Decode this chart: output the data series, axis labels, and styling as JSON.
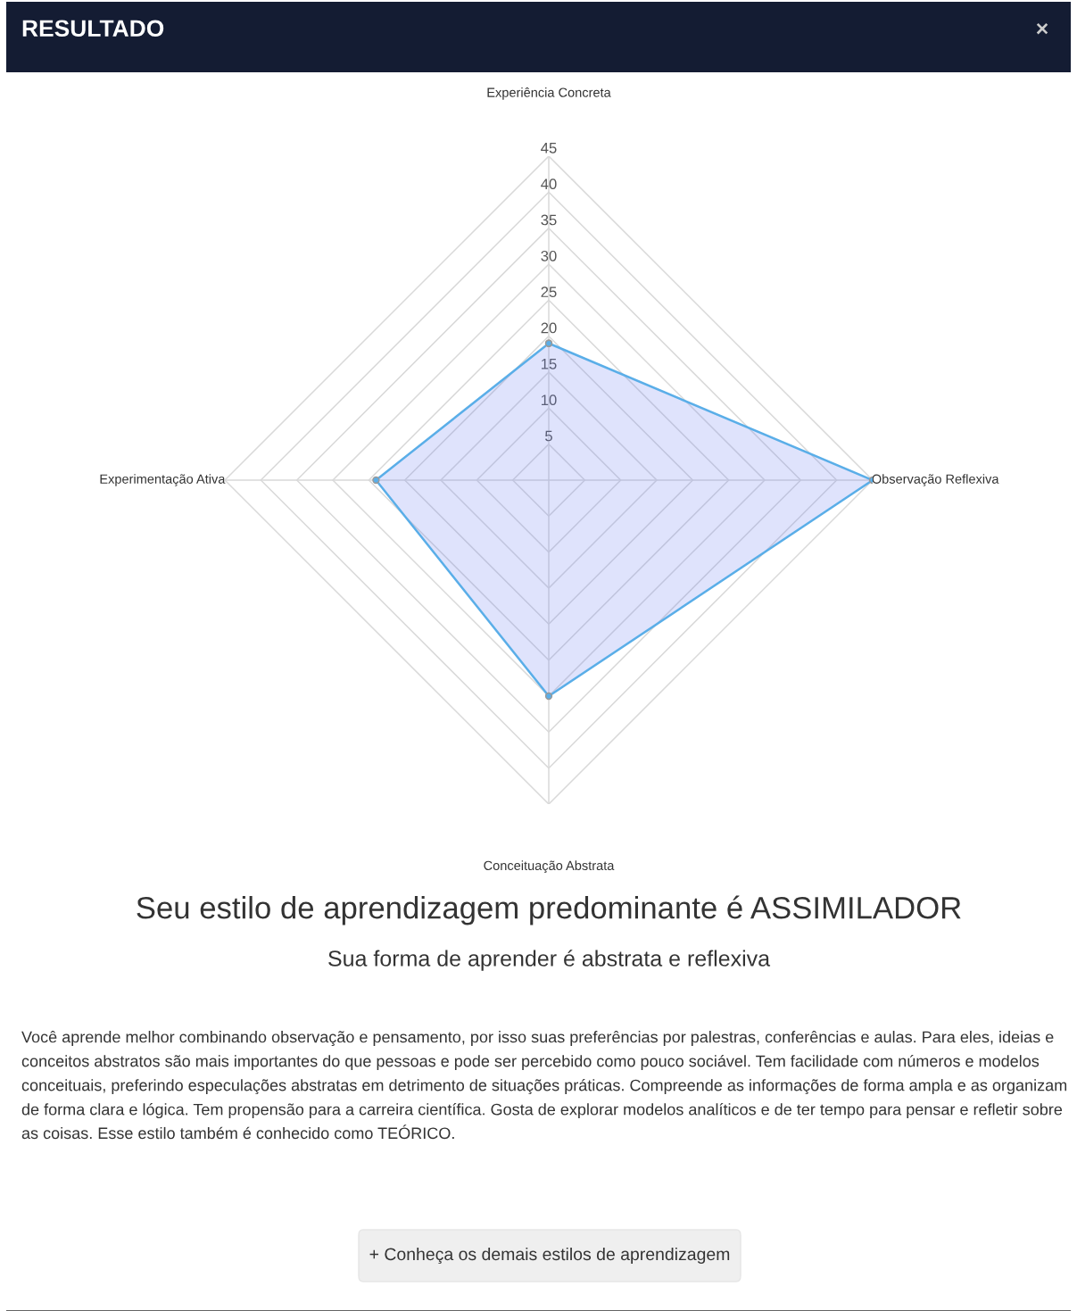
{
  "chart_data": {
    "type": "radar",
    "title": "Seu estilo de aprendizagem predominante é ASSIMILADOR",
    "subtitle": "Sua forma de aprender é abstrata e reflexiva",
    "categories": [
      "Experiência Concreta",
      "Observação Reflexiva",
      "Conceituação Abstrata",
      "Experimentação Ativa"
    ],
    "series": [
      {
        "color": "#5aaee8",
        "values": [
          19,
          45,
          30,
          24
        ]
      }
    ],
    "ylim": [
      0,
      45
    ],
    "yticks": [
      5,
      10,
      15,
      20,
      25,
      30,
      35,
      40,
      45
    ],
    "grid": true,
    "marker": "circle",
    "annotations": [
      "RESULTADO",
      "×",
      "Você aprende melhor combinando observação e pensamento, por isso suas preferências por palestras, conferências e aulas. Para eles, ideias e conceitos abstratos são mais importantes do que pessoas e pode ser percebido como pouco sociável. Tem facilidade com números e modelos conceituais, preferindo especulações abstratas em detrimento de situações práticas. Compreende as informações de forma ampla e as organizam de forma clara e lógica. Tem propensão para a carreira científica. Gosta de explorar modelos analíticos e de ter tempo para pensar e refletir sobre as coisas. Esse estilo também é conhecido como TEÓRICO.",
      "+ Conheça os demais estilos de aprendizagem"
    ]
  }
}
